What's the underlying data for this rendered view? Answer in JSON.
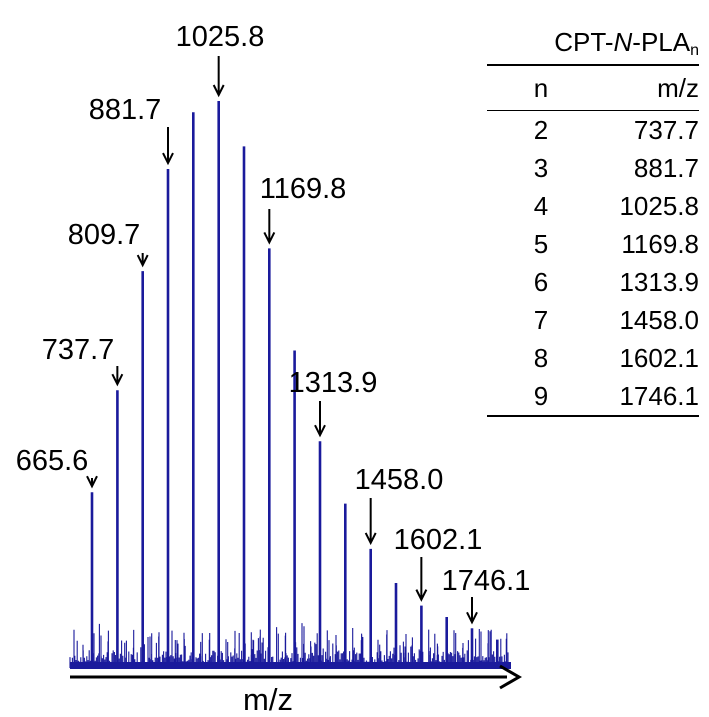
{
  "chart_data": {
    "type": "bar",
    "description_type": "mass spectrum (stick plot)",
    "xlabel": "m/z",
    "ylabel": "",
    "x_axis_arrow": true,
    "grid": false,
    "peaks": [
      {
        "mz": 665.6,
        "intensity": 0.31,
        "label": "665.6"
      },
      {
        "mz": 737.7,
        "intensity": 0.49,
        "label": "737.7"
      },
      {
        "mz": 809.7,
        "intensity": 0.7,
        "label": "809.7"
      },
      {
        "mz": 881.7,
        "intensity": 0.88,
        "label": "881.7"
      },
      {
        "mz": 953.7,
        "intensity": 0.98,
        "label": ""
      },
      {
        "mz": 1025.8,
        "intensity": 1.0,
        "label": "1025.8"
      },
      {
        "mz": 1097.8,
        "intensity": 0.92,
        "label": ""
      },
      {
        "mz": 1169.8,
        "intensity": 0.74,
        "label": "1169.8"
      },
      {
        "mz": 1241.8,
        "intensity": 0.56,
        "label": ""
      },
      {
        "mz": 1313.9,
        "intensity": 0.4,
        "label": "1313.9"
      },
      {
        "mz": 1385.9,
        "intensity": 0.29,
        "label": ""
      },
      {
        "mz": 1458.0,
        "intensity": 0.21,
        "label": "1458.0"
      },
      {
        "mz": 1530.0,
        "intensity": 0.15,
        "label": ""
      },
      {
        "mz": 1602.1,
        "intensity": 0.11,
        "label": "1602.1"
      },
      {
        "mz": 1674.1,
        "intensity": 0.09,
        "label": ""
      },
      {
        "mz": 1746.1,
        "intensity": 0.07,
        "label": "1746.1"
      },
      {
        "mz": 1818.1,
        "intensity": 0.05,
        "label": ""
      }
    ],
    "color": "#1a1a9c"
  },
  "table": {
    "title_prefix": "CPT-",
    "title_italic": "N",
    "title_mid": "-PLA",
    "title_sub": "n",
    "headers": [
      "n",
      "m/z"
    ],
    "rows": [
      {
        "n": "2",
        "mz": "737.7"
      },
      {
        "n": "3",
        "mz": "881.7"
      },
      {
        "n": "4",
        "mz": "1025.8"
      },
      {
        "n": "5",
        "mz": "1169.8"
      },
      {
        "n": "6",
        "mz": "1313.9"
      },
      {
        "n": "7",
        "mz": "1458.0"
      },
      {
        "n": "8",
        "mz": "1602.1"
      },
      {
        "n": "9",
        "mz": "1746.1"
      }
    ]
  }
}
